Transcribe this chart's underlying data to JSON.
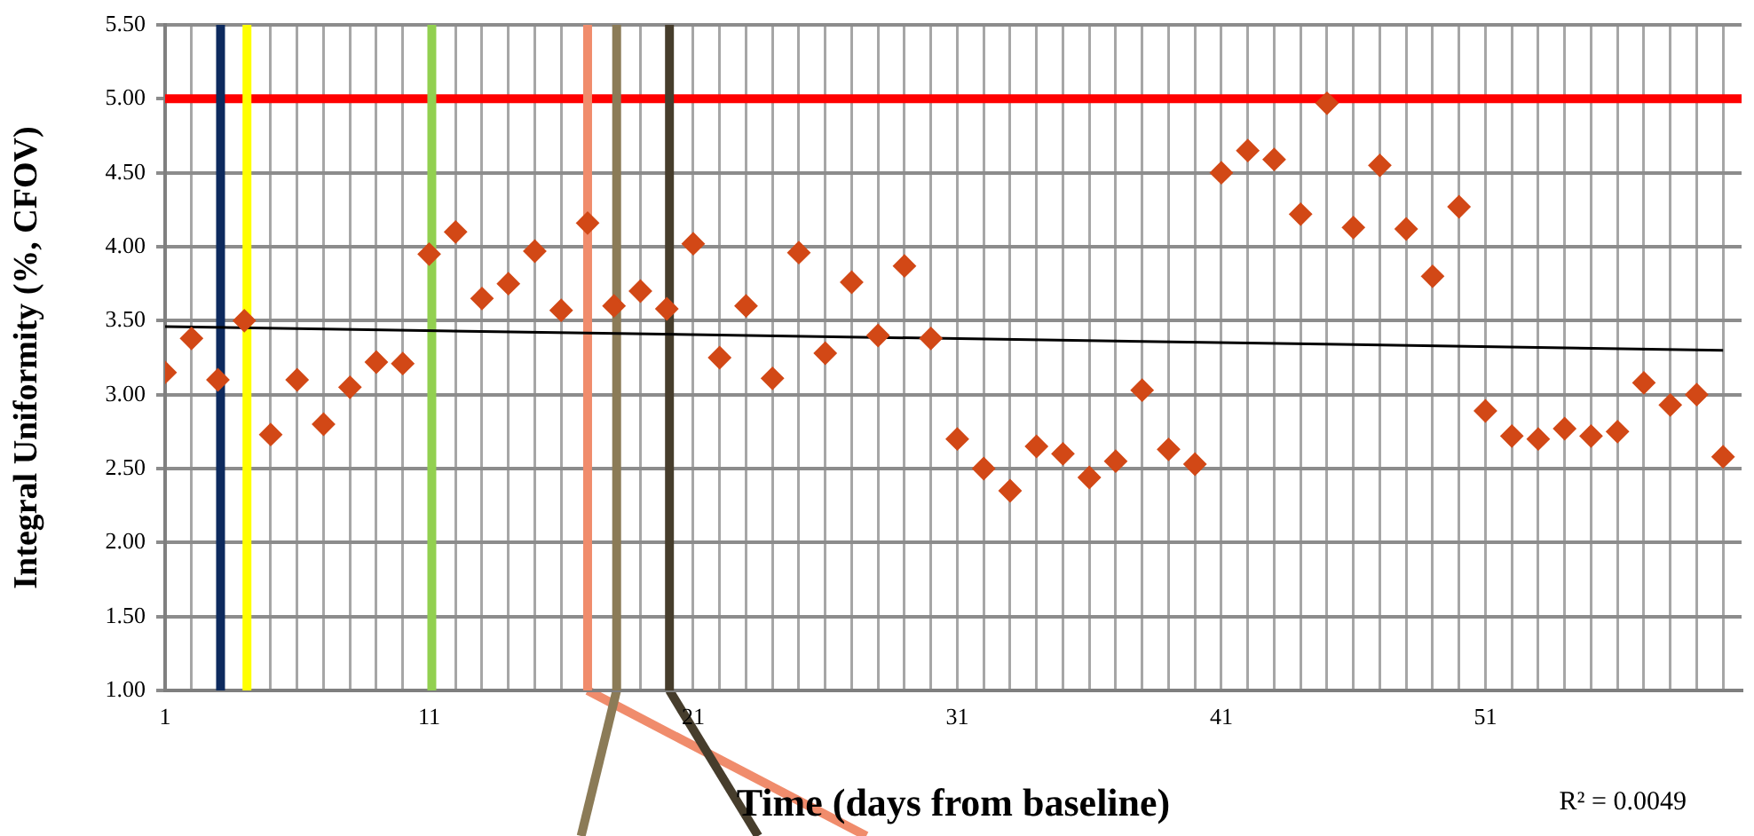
{
  "chart_data": {
    "type": "scatter",
    "xlabel": "Time (days from baseline)",
    "ylabel": "Integral Uniformity (%, CFOV)",
    "x": [
      1,
      2,
      3,
      4,
      5,
      6,
      7,
      8,
      9,
      10,
      11,
      12,
      13,
      14,
      15,
      16,
      17,
      18,
      19,
      20,
      21,
      22,
      23,
      24,
      25,
      26,
      27,
      28,
      29,
      30,
      31,
      32,
      33,
      34,
      35,
      36,
      37,
      38,
      39,
      40,
      41,
      42,
      43,
      44,
      45,
      46,
      47,
      48,
      49,
      50,
      51,
      52,
      53,
      54,
      55,
      56,
      57,
      58,
      59,
      60
    ],
    "series": [
      {
        "color": "#d24816",
        "values": [
          3.15,
          3.38,
          3.1,
          3.5,
          2.73,
          3.1,
          2.8,
          3.05,
          3.22,
          3.21,
          3.95,
          4.1,
          3.65,
          3.75,
          3.97,
          3.57,
          4.16,
          3.6,
          3.7,
          3.58,
          4.02,
          3.25,
          3.6,
          3.11,
          3.96,
          3.28,
          3.76,
          3.4,
          3.87,
          3.38,
          2.7,
          2.5,
          2.35,
          2.65,
          2.6,
          2.44,
          2.55,
          3.03,
          2.63,
          2.53,
          4.5,
          4.65,
          4.59,
          4.22,
          4.97,
          4.13,
          4.55,
          4.12,
          3.8,
          4.27,
          2.89,
          2.72,
          2.7,
          2.77,
          2.72,
          2.75,
          3.08,
          2.93,
          3.0,
          2.58
        ]
      },
      {
        "type": "line",
        "color": "#000000",
        "marker": "none",
        "x": [
          1,
          60
        ],
        "values": [
          3.46,
          3.3
        ]
      }
    ],
    "xlim": [
      1,
      60.7
    ],
    "xticks": [
      1,
      {
        "value": 2,
        "label": null
      },
      {
        "value": 3,
        "label": null
      },
      {
        "value": 4,
        "label": null
      },
      {
        "value": 5,
        "label": null
      },
      {
        "value": 6,
        "label": null
      },
      {
        "value": 7,
        "label": null
      },
      {
        "value": 8,
        "label": null
      },
      {
        "value": 9,
        "label": null
      },
      {
        "value": 10,
        "label": null
      },
      11,
      {
        "value": 12,
        "label": null
      },
      {
        "value": 13,
        "label": null
      },
      {
        "value": 14,
        "label": null
      },
      {
        "value": 15,
        "label": null
      },
      {
        "value": 16,
        "label": null
      },
      {
        "value": 17,
        "label": null
      },
      {
        "value": 18,
        "label": null
      },
      {
        "value": 19,
        "label": null
      },
      {
        "value": 20,
        "label": null
      },
      21,
      {
        "value": 22,
        "label": null
      },
      {
        "value": 23,
        "label": null
      },
      {
        "value": 24,
        "label": null
      },
      {
        "value": 25,
        "label": null
      },
      {
        "value": 26,
        "label": null
      },
      {
        "value": 27,
        "label": null
      },
      {
        "value": 28,
        "label": null
      },
      {
        "value": 29,
        "label": null
      },
      {
        "value": 30,
        "label": null
      },
      31,
      {
        "value": 32,
        "label": null
      },
      {
        "value": 33,
        "label": null
      },
      {
        "value": 34,
        "label": null
      },
      {
        "value": 35,
        "label": null
      },
      {
        "value": 36,
        "label": null
      },
      {
        "value": 37,
        "label": null
      },
      {
        "value": 38,
        "label": null
      },
      {
        "value": 39,
        "label": null
      },
      {
        "value": 40,
        "label": null
      },
      41,
      {
        "value": 42,
        "label": null
      },
      {
        "value": 43,
        "label": null
      },
      {
        "value": 44,
        "label": null
      },
      {
        "value": 45,
        "label": null
      },
      {
        "value": 46,
        "label": null
      },
      {
        "value": 47,
        "label": null
      },
      {
        "value": 48,
        "label": null
      },
      {
        "value": 49,
        "label": null
      },
      {
        "value": 50,
        "label": null
      },
      51,
      {
        "value": 52,
        "label": null
      },
      {
        "value": 53,
        "label": null
      },
      {
        "value": 54,
        "label": null
      },
      {
        "value": 55,
        "label": null
      },
      {
        "value": 56,
        "label": null
      },
      {
        "value": 57,
        "label": null
      },
      {
        "value": 58,
        "label": null
      },
      {
        "value": 59,
        "label": null
      },
      {
        "value": 60,
        "label": null
      }
    ],
    "ylim": [
      1,
      5.5
    ],
    "yticks": [
      {
        "value": 1,
        "label": "1.00"
      },
      {
        "value": 1.5,
        "label": "1.50"
      },
      {
        "value": 2,
        "label": "2.00"
      },
      {
        "value": 2.5,
        "label": "2.50"
      },
      {
        "value": 3,
        "label": "3.00"
      },
      {
        "value": 3.5,
        "label": "3.50"
      },
      {
        "value": 4,
        "label": "4.00"
      },
      {
        "value": 4.5,
        "label": "4.50"
      },
      {
        "value": 5,
        "label": "5.00"
      },
      {
        "value": 5.5,
        "label": "5.50"
      }
    ],
    "ref_lines": [
      {
        "axis": "y",
        "value": 5,
        "color": "#ff0000"
      },
      {
        "axis": "x",
        "value": 3.1,
        "color": "#0d2a5e"
      },
      {
        "axis": "x",
        "value": 4.1,
        "color": "#ffff00"
      },
      {
        "axis": "x",
        "value": 11.1,
        "color": "#92d050"
      },
      {
        "axis": "x",
        "value": 17,
        "color": "#f08c6c"
      },
      {
        "axis": "x",
        "value": 18.1,
        "color": "#8b7b57"
      },
      {
        "axis": "x",
        "value": 20.1,
        "color": "#463d2c"
      }
    ],
    "annotations": [
      "R² = 0.0049"
    ],
    "grid": true,
    "legend": false,
    "marker": "diamond"
  }
}
